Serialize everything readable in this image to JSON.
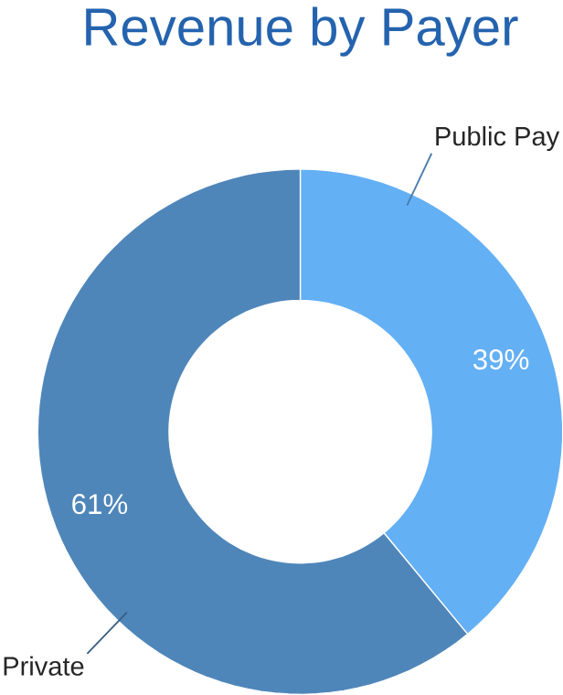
{
  "chart_data": {
    "type": "donut",
    "title": "Revenue by Payer",
    "categories": [
      "Public Pay",
      "Private"
    ],
    "values": [
      39,
      61
    ],
    "value_labels": [
      "39%",
      "61%"
    ],
    "colors": [
      "#64b0f4",
      "#4f86ba"
    ]
  }
}
